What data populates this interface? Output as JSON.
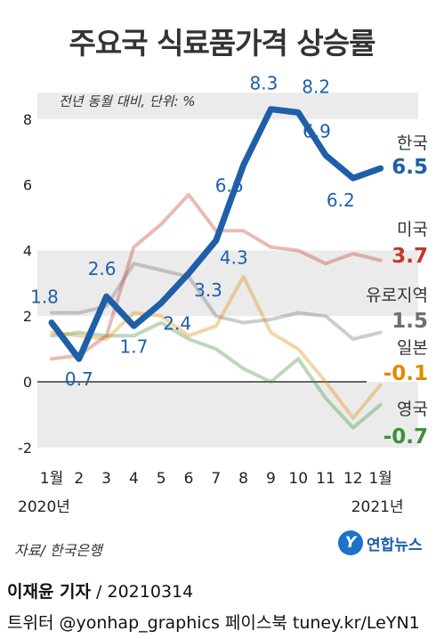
{
  "chart_data": {
    "type": "line",
    "title": "주요국 식료품가격 상승률",
    "subtitle": "전년 동월 대비, 단위: %",
    "x": [
      "1월",
      "2",
      "3",
      "4",
      "5",
      "6",
      "7",
      "8",
      "9",
      "10",
      "11",
      "12",
      "1월"
    ],
    "year_labels": [
      {
        "label": "2020년",
        "index": 0
      },
      {
        "label": "2021년",
        "index": 12
      }
    ],
    "yticks": [
      -2,
      0,
      2,
      4,
      6,
      8
    ],
    "ylim": [
      -2.3,
      8.8
    ],
    "series": [
      {
        "name": "한국",
        "color": "#1f5fa8",
        "end_label": "6.5",
        "values": [
          1.8,
          0.7,
          2.6,
          1.7,
          2.4,
          3.3,
          4.3,
          6.6,
          8.3,
          8.2,
          6.9,
          6.2,
          6.5
        ]
      },
      {
        "name": "미국",
        "color": "#c0392b",
        "end_label": "3.7",
        "values": [
          0.7,
          0.8,
          1.4,
          4.1,
          4.8,
          5.7,
          4.6,
          4.6,
          4.1,
          4.0,
          3.6,
          3.9,
          3.7
        ]
      },
      {
        "name": "유로지역",
        "color": "#6f6f6f",
        "end_label": "1.5",
        "values": [
          2.1,
          2.1,
          2.3,
          3.6,
          3.4,
          3.2,
          2.0,
          1.8,
          1.9,
          2.1,
          2.0,
          1.3,
          1.5
        ]
      },
      {
        "name": "일본",
        "color": "#e08a00",
        "end_label": "-0.1",
        "values": [
          1.5,
          1.4,
          1.3,
          2.1,
          2.0,
          1.4,
          1.7,
          3.2,
          1.5,
          1.0,
          0.0,
          -1.1,
          -0.1
        ]
      },
      {
        "name": "영국",
        "color": "#3e8e3e",
        "end_label": "-0.7",
        "values": [
          1.4,
          1.5,
          1.4,
          1.4,
          1.8,
          1.3,
          1.0,
          0.4,
          0.0,
          0.7,
          -0.5,
          -1.4,
          -0.7
        ]
      }
    ],
    "point_labels": [
      "1.8",
      "0.7",
      "2.6",
      "1.7",
      "2.4",
      "3.3",
      "4.3",
      "6.6",
      "8.3",
      "8.2",
      "6.9",
      "6.2"
    ],
    "grid": "horizontal bands",
    "legend": "right, at line ends"
  },
  "footer": {
    "source": "자료/ 한국은행",
    "logo_text": "연합뉴스",
    "reporter": "이재윤 기자",
    "date": " / 20210314",
    "social": "트위터 @yonhap_graphics  페이스북 tuney.kr/LeYN1"
  }
}
